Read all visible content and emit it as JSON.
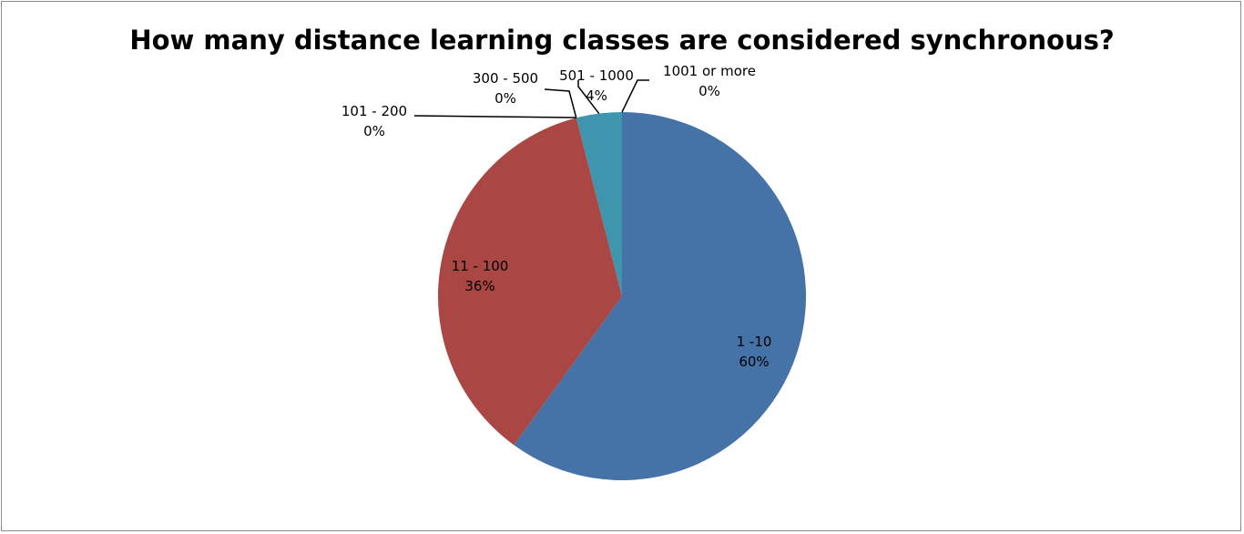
{
  "chart_data": {
    "type": "pie",
    "title": "How many distance learning classes are considered synchronous?",
    "categories": [
      "1 -10",
      "11 - 100",
      "101 - 200",
      "300 - 500",
      "501 - 1000",
      "1001 or more"
    ],
    "values": [
      60,
      36,
      0,
      0,
      4,
      0
    ],
    "value_labels": [
      "60%",
      "36%",
      "0%",
      "0%",
      "4%",
      "0%"
    ],
    "colors": [
      "#4572A7",
      "#AA4643",
      "#89A54E",
      "#80699B",
      "#3D96AE",
      "#DB843D"
    ],
    "legend": "none",
    "start_angle": "12 o'clock",
    "direction": "clockwise"
  }
}
